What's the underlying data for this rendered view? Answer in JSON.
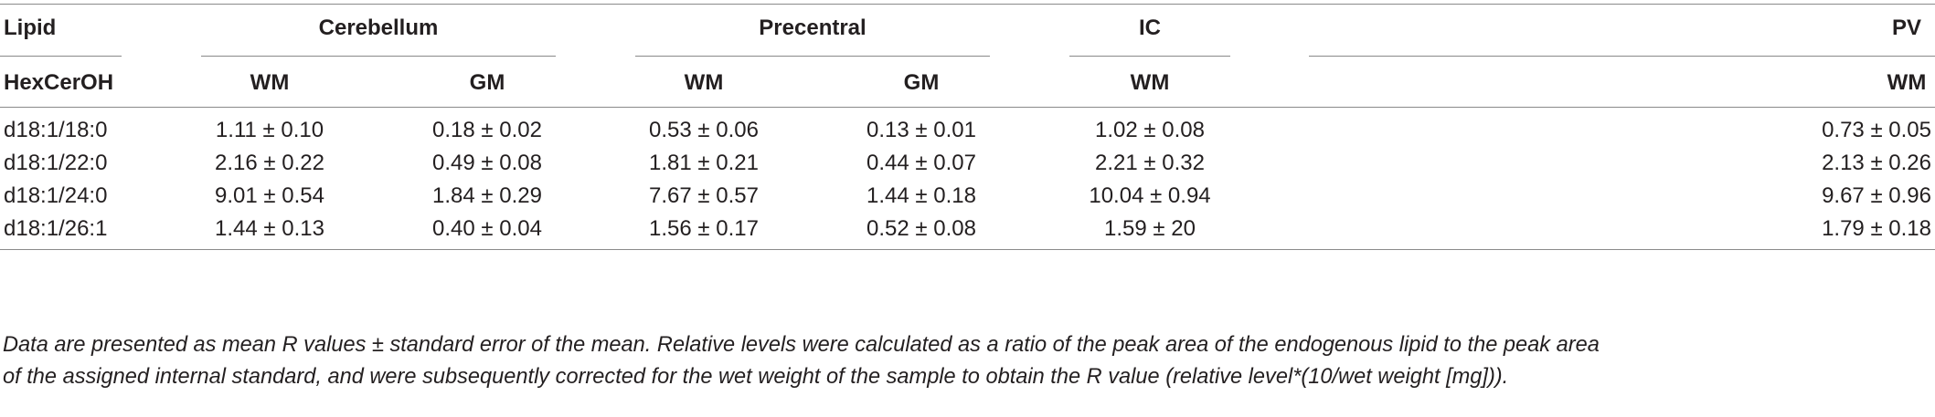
{
  "table": {
    "headers": {
      "lipid": "Lipid",
      "class": "HexCerOH",
      "regions": [
        {
          "name": "Cerebellum",
          "subs": [
            "WM",
            "GM"
          ]
        },
        {
          "name": "Precentral",
          "subs": [
            "WM",
            "GM"
          ]
        },
        {
          "name": "IC",
          "subs": [
            "WM"
          ]
        },
        {
          "name": "PV",
          "subs": [
            "WM"
          ]
        }
      ]
    },
    "rows": [
      {
        "lipid": "d18:1/18:0",
        "cells": [
          "1.11 ± 0.10",
          "0.18 ± 0.02",
          "0.53 ± 0.06",
          "0.13 ± 0.01",
          "1.02 ± 0.08",
          "0.73 ± 0.05"
        ]
      },
      {
        "lipid": "d18:1/22:0",
        "cells": [
          "2.16 ± 0.22",
          "0.49 ± 0.08",
          "1.81 ± 0.21",
          "0.44 ± 0.07",
          "2.21 ± 0.32",
          "2.13 ± 0.26"
        ]
      },
      {
        "lipid": "d18:1/24:0",
        "cells": [
          "9.01 ± 0.54",
          "1.84 ± 0.29",
          "7.67 ± 0.57",
          "1.44 ± 0.18",
          "10.04 ± 0.94",
          "9.67 ± 0.96"
        ]
      },
      {
        "lipid": "d18:1/26:1",
        "cells": [
          "1.44 ± 0.13",
          "0.40 ± 0.04",
          "1.56 ± 0.17",
          "0.52 ± 0.08",
          "1.59 ± 20",
          "1.79 ± 0.18"
        ]
      }
    ]
  },
  "footnote": [
    "Data are presented as mean R values ± standard error of the mean. Relative levels were calculated as a ratio of the peak area of the endogenous lipid to the peak area",
    "of the assigned internal standard, and were subsequently corrected for the wet weight of the sample to obtain the R value (relative level*(10/wet weight [mg]))."
  ]
}
